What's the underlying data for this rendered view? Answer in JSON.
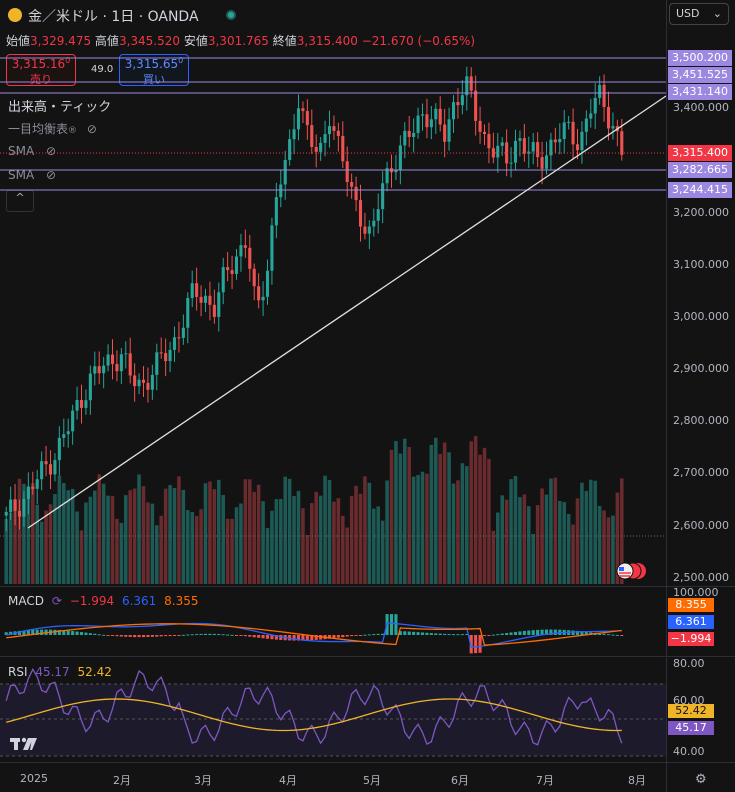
{
  "header": {
    "title": "金／米ドル · 1日 · OANDA"
  },
  "ohlc": {
    "open_label": "始値",
    "open": "3,329.475",
    "high_label": "高値",
    "high": "3,345.520",
    "low_label": "安値",
    "low": "3,301.765",
    "close_label": "終値",
    "close": "3,315.400",
    "change": "−21.670 (−0.65%)"
  },
  "trade": {
    "sell_price": "3,315.16",
    "sell_sup": "0",
    "sell_label": "売り",
    "spread": "49.0",
    "buy_price": "3,315.65",
    "buy_sup": "0",
    "buy_label": "買い"
  },
  "indicators": {
    "volume": "出来高・ティック",
    "ichimoku": "一目均衡表",
    "sma1": "SMA",
    "sma2": "SMA",
    "collapse": "^"
  },
  "currency": {
    "value": "USD"
  },
  "price_tags": [
    {
      "value": "3,500.200",
      "color": "#9c88e0"
    },
    {
      "value": "3,451.525",
      "color": "#9c88e0"
    },
    {
      "value": "3,431.140",
      "color": "#9c88e0"
    },
    {
      "value": "3,315.400",
      "color": "#f23645"
    },
    {
      "value": "3,282.665",
      "color": "#9c88e0"
    },
    {
      "value": "3,244.415",
      "color": "#9c88e0"
    }
  ],
  "price_axis": [
    "3,400.000",
    "3,200.000",
    "3,100.000",
    "3,000.000",
    "2,900.000",
    "2,800.000",
    "2,700.000",
    "2,600.000",
    "2,500.000"
  ],
  "macd": {
    "label": "MACD",
    "v1": "−1.994",
    "v2": "6.361",
    "v3": "8.355",
    "axis_top": "100.000",
    "tags": [
      {
        "value": "8.355",
        "color": "#ff6d00"
      },
      {
        "value": "6.361",
        "color": "#2962ff"
      },
      {
        "value": "−1.994",
        "color": "#f23645"
      }
    ]
  },
  "rsi": {
    "label": "RSI",
    "v1": "45.17",
    "v2": "52.42",
    "axis": [
      "80.00",
      "60.00",
      "40.00"
    ],
    "tags": [
      {
        "value": "52.42",
        "color": "#f0b429"
      },
      {
        "value": "45.17",
        "color": "#7e57c2"
      }
    ]
  },
  "time_axis": [
    "2025",
    "2月",
    "3月",
    "4月",
    "5月",
    "6月",
    "7月",
    "8月"
  ],
  "colors": {
    "up": "#26a69a",
    "down": "#ef5350",
    "background": "#131313"
  },
  "chart_data": {
    "type": "candlestick",
    "instrument": "金／米ドル",
    "timeframe": "1日",
    "x": [
      "2025",
      "2月",
      "3月",
      "4月",
      "5月",
      "6月",
      "7月",
      "8月"
    ],
    "price_ylim": [
      2500,
      3500
    ],
    "close_approx": [
      2615,
      2640,
      2660,
      2690,
      2720,
      2750,
      2790,
      2840,
      2880,
      2900,
      2920,
      2930,
      2880,
      2870,
      2900,
      2920,
      2950,
      3000,
      3050,
      3040,
      3020,
      3080,
      3120,
      3150,
      3000,
      3100,
      3250,
      3300,
      3430,
      3350,
      3300,
      3400,
      3320,
      3240,
      3200,
      3150,
      3250,
      3300,
      3330,
      3360,
      3400,
      3380,
      3350,
      3420,
      3450,
      3390,
      3340,
      3320,
      3300,
      3350,
      3320,
      3300,
      3330,
      3350,
      3360,
      3340,
      3400,
      3430,
      3380,
      3315
    ],
    "last_close": 3315.4,
    "indicators": {
      "macd": {
        "macd": -1.994,
        "signal": 6.361,
        "value3": 8.355
      },
      "rsi": {
        "rsi": 45.17,
        "ma": 52.42
      }
    }
  }
}
